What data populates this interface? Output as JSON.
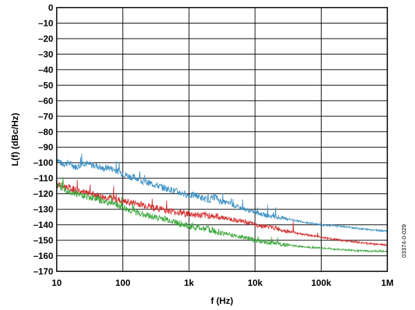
{
  "chart_data": {
    "type": "line",
    "xlabel": "f (Hz)",
    "ylabel": "L(f) (dBc/Hz)",
    "xscale": "log",
    "xlim": [
      10,
      1000000
    ],
    "ylim": [
      -170,
      0
    ],
    "grid": true,
    "x_ticks": [
      {
        "value": 10,
        "label": "10"
      },
      {
        "value": 100,
        "label": "100"
      },
      {
        "value": 1000,
        "label": "1k"
      },
      {
        "value": 10000,
        "label": "10k"
      },
      {
        "value": 100000,
        "label": "100k"
      },
      {
        "value": 1000000,
        "label": "1M"
      }
    ],
    "y_ticks": [
      {
        "value": 0,
        "label": "0"
      },
      {
        "value": -10,
        "label": "–10"
      },
      {
        "value": -20,
        "label": "–20"
      },
      {
        "value": -30,
        "label": "–30"
      },
      {
        "value": -40,
        "label": "–40"
      },
      {
        "value": -50,
        "label": "–50"
      },
      {
        "value": -60,
        "label": "–60"
      },
      {
        "value": -70,
        "label": "–70"
      },
      {
        "value": -80,
        "label": "–80"
      },
      {
        "value": -90,
        "label": "–90"
      },
      {
        "value": -100,
        "label": "–100"
      },
      {
        "value": -110,
        "label": "–110"
      },
      {
        "value": -120,
        "label": "–120"
      },
      {
        "value": -130,
        "label": "–130"
      },
      {
        "value": -140,
        "label": "–140"
      },
      {
        "value": -150,
        "label": "–150"
      },
      {
        "value": -160,
        "label": "–160"
      },
      {
        "value": -170,
        "label": "–170"
      }
    ],
    "series": [
      {
        "color": "#3b8fc4",
        "x": [
          10,
          12,
          15,
          20,
          25,
          30,
          40,
          50,
          60,
          80,
          100,
          130,
          170,
          200,
          300,
          400,
          500,
          700,
          1000,
          1300,
          1600,
          2000,
          2500,
          3000,
          4000,
          5000,
          7000,
          10000,
          15000,
          20000,
          30000,
          50000,
          100000,
          200000,
          500000,
          1000000
        ],
        "y": [
          -97,
          -101,
          -100,
          -103,
          -100,
          -101,
          -102,
          -104,
          -103,
          -105,
          -107,
          -109,
          -110,
          -112,
          -114,
          -116,
          -117,
          -119,
          -121,
          -121,
          -123,
          -124,
          -122,
          -125,
          -126,
          -128,
          -130,
          -132,
          -134,
          -135,
          -136,
          -138,
          -140,
          -141,
          -143,
          -144
        ]
      },
      {
        "color": "#d42a2a",
        "x": [
          10,
          12,
          15,
          20,
          30,
          40,
          50,
          70,
          100,
          150,
          200,
          300,
          400,
          500,
          700,
          1000,
          1500,
          2000,
          3000,
          5000,
          7000,
          10000,
          20000,
          30000,
          50000,
          100000,
          200000,
          500000,
          1000000
        ],
        "y": [
          -114,
          -115,
          -116,
          -118,
          -120,
          -121,
          -122,
          -123,
          -125,
          -126,
          -127,
          -129,
          -130,
          -131,
          -132,
          -133,
          -134,
          -134,
          -135,
          -137,
          -138,
          -140,
          -142,
          -144,
          -146,
          -148,
          -150,
          -152,
          -153
        ]
      },
      {
        "color": "#3aa63a",
        "x": [
          10,
          12,
          15,
          20,
          30,
          40,
          50,
          70,
          100,
          150,
          200,
          300,
          400,
          500,
          700,
          1000,
          1500,
          2000,
          3000,
          5000,
          7000,
          10000,
          20000,
          30000,
          50000,
          100000,
          200000,
          500000,
          1000000
        ],
        "y": [
          -115,
          -116,
          -118,
          -120,
          -122,
          -123,
          -125,
          -126,
          -129,
          -132,
          -133,
          -135,
          -136,
          -137,
          -139,
          -141,
          -142,
          -143,
          -145,
          -147,
          -148,
          -150,
          -152,
          -153,
          -154,
          -155,
          -156,
          -157,
          -157
        ]
      }
    ]
  },
  "doc_id": "03374-0-029"
}
